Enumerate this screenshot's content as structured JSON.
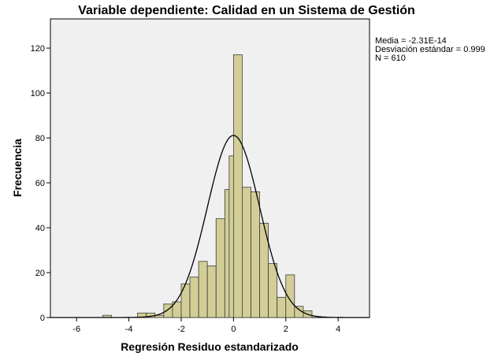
{
  "chart_data": {
    "type": "histogram",
    "title": "Variable dependiente: Calidad en un Sistema de Gestión",
    "xlabel": "Regresión Residuo estandarizado",
    "ylabel": "Frecuencia",
    "xlim": [
      -7,
      5.2
    ],
    "ylim": [
      0,
      133
    ],
    "x_ticks": [
      -6,
      -4,
      -2,
      0,
      2,
      4
    ],
    "y_ticks": [
      0,
      20,
      40,
      60,
      80,
      100,
      120
    ],
    "bin_width": 0.333,
    "bins": [
      {
        "start": -5.0,
        "count": 1
      },
      {
        "start": -3.667,
        "count": 2
      },
      {
        "start": -3.333,
        "count": 2
      },
      {
        "start": -3.0,
        "count": 1
      },
      {
        "start": -2.667,
        "count": 6
      },
      {
        "start": -2.333,
        "count": 7
      },
      {
        "start": -2.0,
        "count": 15
      },
      {
        "start": -1.667,
        "count": 18
      },
      {
        "start": -1.333,
        "count": 25
      },
      {
        "start": -1.0,
        "count": 23
      },
      {
        "start": -0.667,
        "count": 44
      },
      {
        "start": -0.333,
        "count": 57
      },
      {
        "start": -0.167,
        "count": 72
      },
      {
        "start": 0.0,
        "count": 117
      },
      {
        "start": 0.333,
        "count": 58
      },
      {
        "start": 0.667,
        "count": 56
      },
      {
        "start": 1.0,
        "count": 42
      },
      {
        "start": 1.333,
        "count": 24
      },
      {
        "start": 1.667,
        "count": 9
      },
      {
        "start": 2.0,
        "count": 19
      },
      {
        "start": 2.333,
        "count": 5
      },
      {
        "start": 2.667,
        "count": 3
      }
    ],
    "normal_curve": {
      "mean": 0,
      "sd": 0.999,
      "n": 610,
      "bin_width": 0.333
    },
    "stats": [
      "Media = -2.31E-14",
      "Desviación estándar = 0.999",
      "N = 610"
    ],
    "colors": {
      "plot_background": "#f0f0f0",
      "bar_fill": "#d3ce97",
      "bar_stroke": "#3c3c3c",
      "curve": "#000000"
    }
  }
}
